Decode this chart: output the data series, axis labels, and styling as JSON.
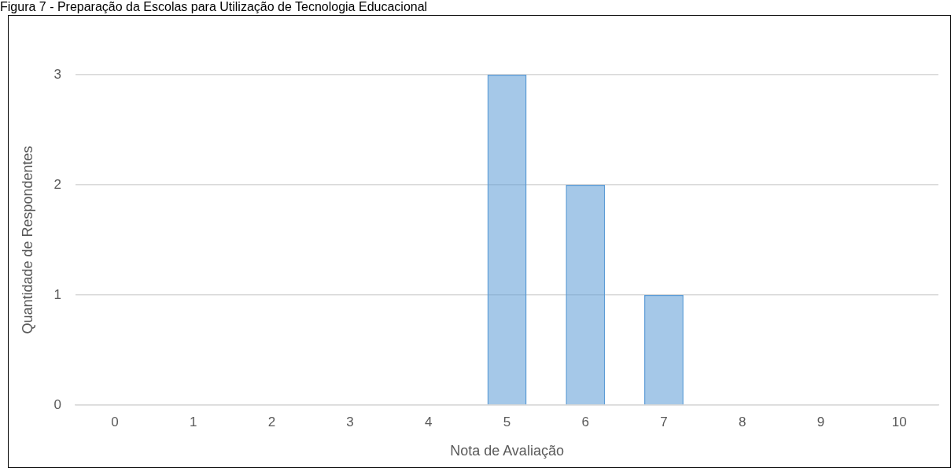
{
  "chart_data": {
    "type": "bar",
    "title": "Figura 7 - Preparação da Escolas para Utilização de Tecnologia Educacional",
    "xlabel": "Nota de Avaliação",
    "ylabel": "Quantidade de Respondentes",
    "categories": [
      "0",
      "1",
      "2",
      "3",
      "4",
      "5",
      "6",
      "7",
      "8",
      "9",
      "10"
    ],
    "values": [
      0,
      0,
      0,
      0,
      0,
      3,
      2,
      1,
      0,
      0,
      0
    ],
    "color": "#5b9bd5",
    "ylim": [
      0,
      3
    ],
    "yticks": [
      0,
      1,
      2,
      3
    ],
    "grid": "y",
    "legend": false
  }
}
